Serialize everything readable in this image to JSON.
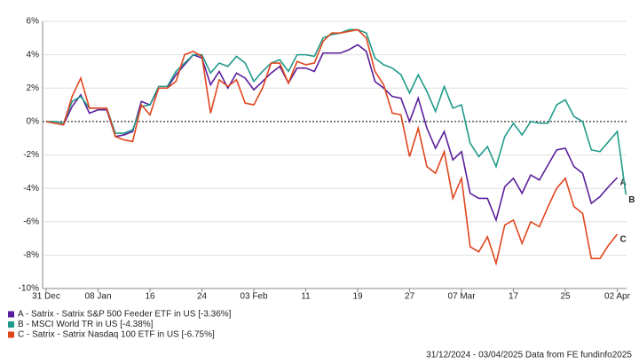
{
  "chart_data": {
    "type": "line",
    "categories": [
      "31 Dec",
      null,
      null,
      null,
      null,
      null,
      "08 Jan",
      null,
      null,
      null,
      null,
      null,
      "16",
      null,
      null,
      null,
      null,
      null,
      "24",
      null,
      null,
      null,
      null,
      null,
      "03 Feb",
      null,
      null,
      null,
      null,
      null,
      "11",
      null,
      null,
      null,
      null,
      null,
      "19",
      null,
      null,
      null,
      null,
      null,
      "27",
      null,
      null,
      null,
      null,
      null,
      "07 Mar",
      null,
      null,
      null,
      null,
      null,
      "17",
      null,
      null,
      null,
      null,
      null,
      "25",
      null,
      null,
      null,
      null,
      null,
      "02 Apr",
      null
    ],
    "series": [
      {
        "name": "A - Satrix - Satrix S&P 500 Feeder ETF in US [-3.36%]",
        "end_label": "A",
        "color": "#5a1f9c",
        "values": [
          0,
          -0.1,
          -0.2,
          0.9,
          1.6,
          0.5,
          0.7,
          0.7,
          -0.9,
          -0.8,
          -0.6,
          1.2,
          1.0,
          2.0,
          2.0,
          2.8,
          3.4,
          4.0,
          3.8,
          2.2,
          3.0,
          2.0,
          2.9,
          2.6,
          1.9,
          2.4,
          2.9,
          3.3,
          2.3,
          3.2,
          3.2,
          3.0,
          4.1,
          4.1,
          4.1,
          4.3,
          4.6,
          4.2,
          2.4,
          2.0,
          1.5,
          1.4,
          0.0,
          1.4,
          -0.4,
          -1.6,
          -0.6,
          -2.3,
          -1.8,
          -4.3,
          -4.6,
          -4.6,
          -5.9,
          -3.9,
          -3.4,
          -4.3,
          -3.2,
          -3.5,
          -2.6,
          -1.7,
          -1.6,
          -2.7,
          -3.1,
          -4.9,
          -4.5,
          -3.9,
          -3.36,
          null
        ]
      },
      {
        "name": "B - MSCI World TR in US [-4.38%]",
        "end_label": "B",
        "color": "#1f9a8a",
        "values": [
          0,
          0,
          -0.1,
          1.2,
          1.5,
          0.8,
          0.8,
          0.8,
          -0.7,
          -0.7,
          -0.5,
          0.9,
          1.0,
          2.1,
          2.1,
          3.0,
          3.5,
          4.0,
          4.0,
          2.9,
          3.5,
          3.3,
          3.9,
          3.5,
          2.4,
          3.0,
          3.5,
          3.7,
          3.0,
          4.0,
          4.0,
          3.9,
          5.0,
          5.2,
          5.3,
          5.5,
          5.5,
          5.3,
          3.8,
          3.4,
          3.2,
          2.8,
          1.7,
          2.8,
          1.8,
          0.6,
          2.1,
          0.8,
          1.0,
          -1.3,
          -2.1,
          -1.5,
          -2.7,
          -0.9,
          -0.1,
          -0.8,
          0.0,
          -0.1,
          -0.1,
          1.0,
          1.3,
          0.3,
          0.0,
          -1.7,
          -1.8,
          -1.2,
          -0.6,
          -4.38
        ]
      },
      {
        "name": "C - Satrix - Satrix Nasdaq 100 ETF in US [-6.75%]",
        "end_label": "C",
        "color": "#e0461e",
        "values": [
          0,
          -0.1,
          -0.2,
          1.5,
          2.6,
          0.8,
          0.8,
          0.8,
          -0.9,
          -1.1,
          -1.2,
          1.0,
          0.4,
          2.0,
          2.0,
          2.4,
          4.0,
          4.2,
          3.9,
          0.5,
          2.5,
          2.1,
          2.5,
          1.1,
          1.0,
          2.0,
          3.5,
          3.5,
          2.3,
          3.6,
          3.4,
          3.5,
          4.8,
          5.3,
          5.3,
          5.4,
          5.5,
          5.0,
          3.0,
          2.2,
          0.5,
          0.4,
          -2.1,
          -0.4,
          -2.7,
          -3.1,
          -1.8,
          -4.6,
          -3.4,
          -7.5,
          -7.8,
          -6.9,
          -8.5,
          -6.2,
          -5.9,
          -7.3,
          -6.0,
          -6.3,
          -5.1,
          -4.0,
          -3.4,
          -5.1,
          -5.5,
          -8.2,
          -8.2,
          -7.4,
          -6.75,
          null
        ]
      }
    ],
    "ylim": [
      -10,
      6
    ],
    "yticks": [
      {
        "value": 6,
        "label": "6%"
      },
      {
        "value": 4,
        "label": "4%"
      },
      {
        "value": 2,
        "label": "2%"
      },
      {
        "value": 0,
        "label": "0%"
      },
      {
        "value": -2,
        "label": "-2%"
      },
      {
        "value": -4,
        "label": "-4%"
      },
      {
        "value": -6,
        "label": "-6%"
      },
      {
        "value": -8,
        "label": "-8%"
      },
      {
        "value": -10,
        "label": "-10%"
      }
    ],
    "grid": true,
    "footer": "31/12/2024 - 03/04/2025 Data from FE fundinfo2025"
  }
}
